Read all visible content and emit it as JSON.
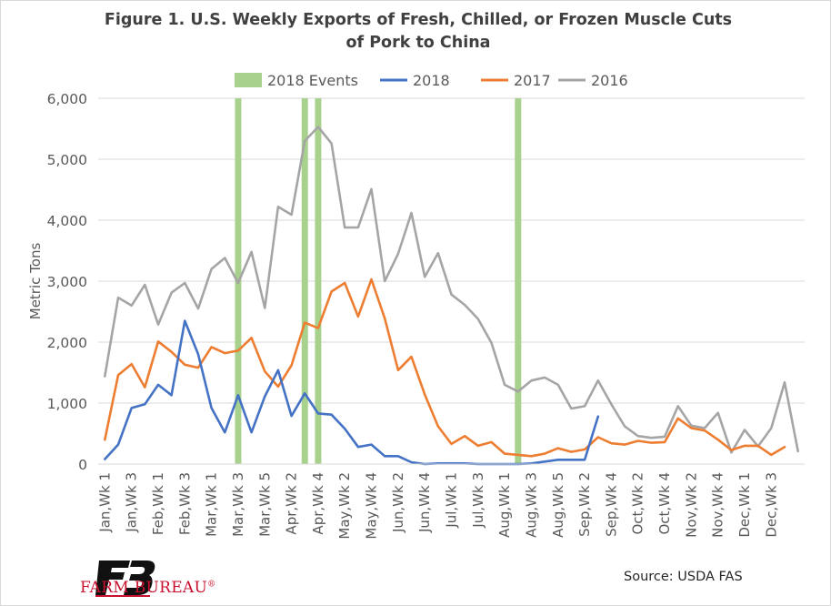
{
  "title_line1": "Figure 1. U.S. Weekly Exports of Fresh, Chilled, or Frozen Muscle Cuts",
  "title_line2": "of Pork to China",
  "source": "Source: USDA FAS",
  "brand": {
    "name": "FARM BUREAU",
    "mark": "®",
    "logo_icon": "farm-bureau-fb-icon",
    "color": "#c8102e"
  },
  "chart_data": {
    "type": "line",
    "ylabel": "Metric Tons",
    "ylim": [
      0,
      6000
    ],
    "yticks": [
      0,
      1000,
      2000,
      3000,
      4000,
      5000,
      6000
    ],
    "ytick_labels": [
      "0",
      "1,000",
      "2,000",
      "3,000",
      "4,000",
      "5,000",
      "6,000"
    ],
    "grid": true,
    "legend_position": "top",
    "x_tick_labels": [
      "Jan,Wk 1",
      "Jan,Wk 3",
      "Feb,Wk 1",
      "Feb,Wk 3",
      "Mar,Wk 1",
      "Mar,Wk 3",
      "Mar,Wk 5",
      "Apr,Wk 2",
      "Apr,Wk 4",
      "May,Wk 2",
      "May,Wk 4",
      "Jun,Wk 2",
      "Jun,Wk 4",
      "Jul,Wk 1",
      "Jul,Wk 3",
      "Aug,Wk 1",
      "Aug,Wk 3",
      "Aug,Wk 5",
      "Sep,Wk 2",
      "Sep,Wk 4",
      "Oct,Wk 2",
      "Oct,Wk 4",
      "Nov,Wk 2",
      "Nov,Wk 4",
      "Dec,Wk 1",
      "Dec,Wk 3"
    ],
    "events": {
      "name": "2018 Events",
      "color": "#a9d18e",
      "x": [
        10,
        15,
        16,
        31
      ]
    },
    "series": [
      {
        "name": "2018",
        "color": "#4472c4",
        "values": [
          80,
          320,
          920,
          980,
          1300,
          1130,
          2350,
          1800,
          920,
          520,
          1130,
          520,
          1110,
          1540,
          790,
          1160,
          830,
          810,
          580,
          280,
          320,
          130,
          130,
          30,
          0,
          10,
          10,
          10,
          0,
          0,
          0,
          0,
          10,
          40,
          70,
          70,
          70,
          780
        ]
      },
      {
        "name": "2017",
        "color": "#ed7d31",
        "values": [
          400,
          1460,
          1640,
          1260,
          2010,
          1840,
          1630,
          1580,
          1920,
          1820,
          1860,
          2070,
          1520,
          1270,
          1620,
          2320,
          2230,
          2830,
          2970,
          2420,
          3030,
          2390,
          1540,
          1760,
          1140,
          620,
          330,
          460,
          300,
          360,
          170,
          150,
          130,
          170,
          260,
          200,
          240,
          440,
          340,
          320,
          380,
          350,
          360,
          750,
          590,
          550,
          400,
          230,
          300,
          300,
          150,
          280
        ]
      },
      {
        "name": "2016",
        "color": "#a5a5a5",
        "values": [
          1440,
          2730,
          2600,
          2940,
          2290,
          2810,
          2970,
          2550,
          3200,
          3380,
          2970,
          3480,
          2560,
          4220,
          4090,
          5300,
          5530,
          5260,
          3880,
          3880,
          4510,
          3000,
          3450,
          4120,
          3070,
          3460,
          2780,
          2610,
          2380,
          1990,
          1300,
          1190,
          1370,
          1420,
          1300,
          910,
          950,
          1370,
          980,
          620,
          460,
          430,
          450,
          950,
          630,
          590,
          840,
          190,
          560,
          290,
          590,
          1340,
          210
        ]
      }
    ]
  }
}
